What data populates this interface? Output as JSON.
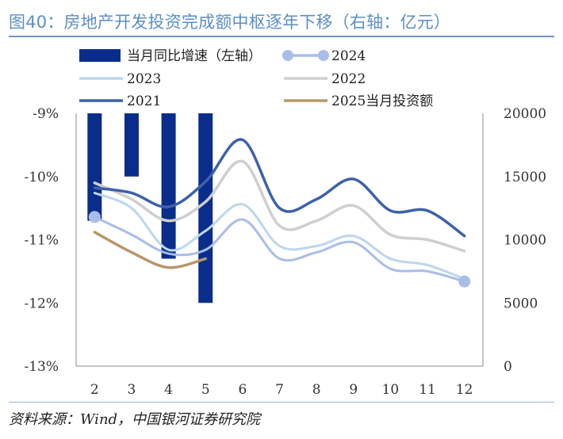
{
  "figure": {
    "title": "图40：房地产开发投资完成额中枢逐年下移（右轴：亿元）",
    "source": "资料来源：Wind，中国银河证券研究院"
  },
  "chart_data": {
    "type": "bar",
    "categories": [
      "2",
      "3",
      "4",
      "5",
      "6",
      "7",
      "8",
      "9",
      "10",
      "11",
      "12"
    ],
    "y_left": {
      "ylim": [
        -13,
        -9
      ],
      "ticks": [
        -9,
        -10,
        -11,
        -12,
        -13
      ],
      "tick_labels": [
        "-9%",
        "-10%",
        "-11%",
        "-12%",
        "-13%"
      ]
    },
    "y_right": {
      "ylim": [
        0,
        20000
      ],
      "ticks": [
        20000,
        15000,
        10000,
        5000,
        0
      ],
      "tick_labels": [
        "20000",
        "15000",
        "10000",
        "5000",
        "0"
      ]
    },
    "bars": {
      "name": "当月同比增速（左轴）",
      "axis": "left",
      "color": "#0a2d8c",
      "values": [
        -10.7,
        -10.0,
        -11.3,
        -12.0,
        null,
        null,
        null,
        null,
        null,
        null,
        null
      ]
    },
    "series": [
      {
        "name": "2024",
        "axis": "right",
        "color": "#a9bde8",
        "width": 3,
        "markers": true,
        "values": [
          11800,
          10400,
          8900,
          9200,
          11600,
          8500,
          9000,
          9800,
          7700,
          7500,
          6700
        ]
      },
      {
        "name": "2023",
        "axis": "right",
        "color": "#bcd7ef",
        "width": 3,
        "values": [
          13700,
          12500,
          9200,
          10700,
          12800,
          9500,
          9500,
          10300,
          8500,
          8000,
          6900
        ]
      },
      {
        "name": "2022",
        "axis": "right",
        "color": "#cfcfcf",
        "width": 3.5,
        "values": [
          14500,
          13200,
          11500,
          13000,
          16200,
          11100,
          11500,
          12700,
          10400,
          10000,
          9100
        ]
      },
      {
        "name": "2021",
        "axis": "right",
        "color": "#3d61ab",
        "width": 3.5,
        "values": [
          14100,
          13700,
          12600,
          14600,
          17900,
          12500,
          13200,
          14800,
          12300,
          12300,
          10300
        ]
      },
      {
        "name": "2025当月投资额",
        "axis": "right",
        "color": "#b8976a",
        "width": 3.5,
        "values": [
          10600,
          9000,
          7800,
          8500,
          null,
          null,
          null,
          null,
          null,
          null,
          null
        ]
      }
    ],
    "legend_placement": "top, three columns",
    "grid": false
  }
}
